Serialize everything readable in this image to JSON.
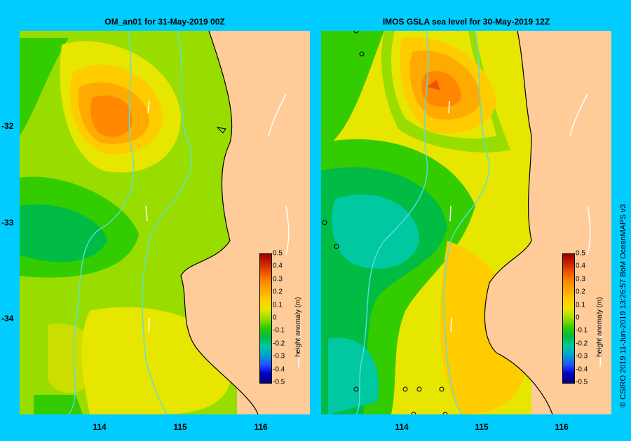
{
  "panels": [
    {
      "title": "OM_an01  for 31-May-2019 00Z",
      "colorbar_label": "height anomaly  (m)"
    },
    {
      "title": "IMOS  GSLA sea level   for 30-May-2019 12Z",
      "colorbar_label": "height anomaly  (m)"
    }
  ],
  "axes": {
    "y_ticks": [
      "-32",
      "-33",
      "-34"
    ],
    "x_ticks": [
      "114",
      "115",
      "116"
    ]
  },
  "colorbar": {
    "ticks": [
      "0.5",
      "0.4",
      "0.3",
      "0.2",
      "0.1",
      "0",
      "-0.1",
      "-0.2",
      "-0.3",
      "-0.4",
      "-0.5"
    ],
    "colors": [
      "#000080",
      "#0000cc",
      "#2255ff",
      "#00a0d0",
      "#00c8a0",
      "#00bb44",
      "#33cc00",
      "#99dd00",
      "#e6e600",
      "#ffcc00",
      "#ffaa00",
      "#ff8800",
      "#ee5500",
      "#cc2200",
      "#990000"
    ]
  },
  "credit": "© CSIRO 2019   11-Jun-2019 13:26:57 BoM OceanMAPS v3"
}
